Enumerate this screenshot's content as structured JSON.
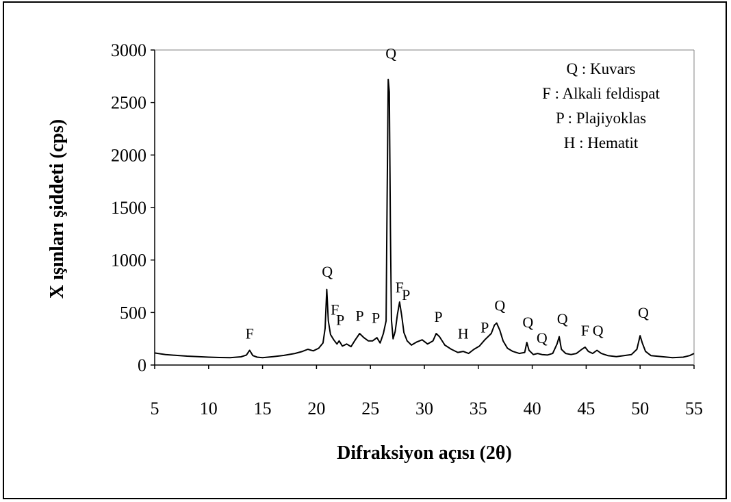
{
  "chart_data": {
    "type": "line",
    "xlabel": "Difraksiyon açısı (2θ)",
    "ylabel": "X ışınları şiddeti (cps)",
    "xlim": [
      5,
      55
    ],
    "ylim": [
      0,
      3000
    ],
    "xticks": [
      "5",
      "10",
      "15",
      "20",
      "25",
      "30",
      "35",
      "40",
      "45",
      "50",
      "55"
    ],
    "yticks": [
      "0",
      "500",
      "1000",
      "1500",
      "2000",
      "2500",
      "3000"
    ],
    "grid": false,
    "legend_position": "top-right",
    "legend": [
      "Q : Kuvars",
      "F : Alkali feldispat",
      "P : Plajiyoklas",
      "H : Hematit"
    ],
    "series": [
      {
        "x": [
          5,
          6,
          7,
          8,
          9,
          10,
          11,
          12,
          13,
          13.5,
          13.8,
          14.1,
          14.5,
          15,
          16,
          17,
          18,
          18.7,
          19.2,
          19.7,
          20.2,
          20.6,
          20.8,
          20.95,
          21.1,
          21.3,
          21.6,
          21.9,
          22.1,
          22.4,
          22.8,
          23.2,
          23.6,
          24.0,
          24.4,
          24.8,
          25.2,
          25.6,
          25.9,
          26.2,
          26.45,
          26.55,
          26.65,
          26.75,
          26.85,
          26.95,
          27.1,
          27.3,
          27.5,
          27.7,
          27.9,
          28.1,
          28.4,
          28.8,
          29.3,
          29.8,
          30.3,
          30.8,
          31.1,
          31.4,
          31.9,
          32.5,
          33.1,
          33.6,
          34.1,
          34.6,
          35.1,
          35.6,
          35.9,
          36.2,
          36.5,
          36.7,
          37.0,
          37.3,
          37.7,
          38.2,
          38.8,
          39.3,
          39.5,
          39.7,
          40.1,
          40.5,
          40.9,
          41.4,
          41.9,
          42.3,
          42.5,
          42.7,
          43.1,
          43.6,
          44.1,
          44.6,
          44.9,
          45.2,
          45.6,
          46.0,
          46.4,
          47.0,
          47.8,
          48.5,
          49.2,
          49.7,
          50.0,
          50.2,
          50.5,
          51.0,
          52.0,
          53.0,
          54.0,
          54.6,
          55.0
        ],
        "y": [
          115,
          100,
          92,
          85,
          80,
          75,
          72,
          70,
          78,
          95,
          140,
          90,
          75,
          70,
          80,
          92,
          110,
          130,
          150,
          135,
          160,
          210,
          350,
          720,
          420,
          290,
          240,
          200,
          230,
          180,
          200,
          175,
          240,
          300,
          260,
          230,
          230,
          260,
          210,
          300,
          420,
          1600,
          2720,
          2600,
          1300,
          430,
          250,
          320,
          480,
          600,
          470,
          310,
          230,
          190,
          220,
          240,
          200,
          230,
          300,
          270,
          190,
          150,
          120,
          130,
          110,
          150,
          180,
          240,
          270,
          300,
          380,
          400,
          330,
          230,
          160,
          130,
          110,
          120,
          215,
          140,
          100,
          110,
          100,
          95,
          110,
          200,
          270,
          150,
          110,
          100,
          110,
          150,
          170,
          130,
          110,
          140,
          110,
          90,
          80,
          90,
          100,
          150,
          280,
          210,
          130,
          90,
          80,
          70,
          75,
          90,
          110
        ]
      }
    ],
    "peak_labels": [
      {
        "text": "F",
        "x": 13.8,
        "y": 250
      },
      {
        "text": "Q",
        "x": 21.0,
        "y": 840
      },
      {
        "text": "F",
        "x": 21.7,
        "y": 480
      },
      {
        "text": "P",
        "x": 22.2,
        "y": 380
      },
      {
        "text": "P",
        "x": 24.0,
        "y": 420
      },
      {
        "text": "P",
        "x": 25.5,
        "y": 400
      },
      {
        "text": "Q",
        "x": 26.9,
        "y": 2920
      },
      {
        "text": "F",
        "x": 27.7,
        "y": 690
      },
      {
        "text": "P",
        "x": 28.3,
        "y": 620
      },
      {
        "text": "P",
        "x": 31.3,
        "y": 410
      },
      {
        "text": "H",
        "x": 33.6,
        "y": 250
      },
      {
        "text": "P",
        "x": 35.6,
        "y": 310
      },
      {
        "text": "Q",
        "x": 37.0,
        "y": 520
      },
      {
        "text": "Q",
        "x": 39.6,
        "y": 360
      },
      {
        "text": "Q",
        "x": 40.9,
        "y": 210
      },
      {
        "text": "Q",
        "x": 42.8,
        "y": 390
      },
      {
        "text": "F",
        "x": 44.9,
        "y": 280
      },
      {
        "text": "Q",
        "x": 46.1,
        "y": 280
      },
      {
        "text": "Q",
        "x": 50.3,
        "y": 450
      }
    ]
  }
}
